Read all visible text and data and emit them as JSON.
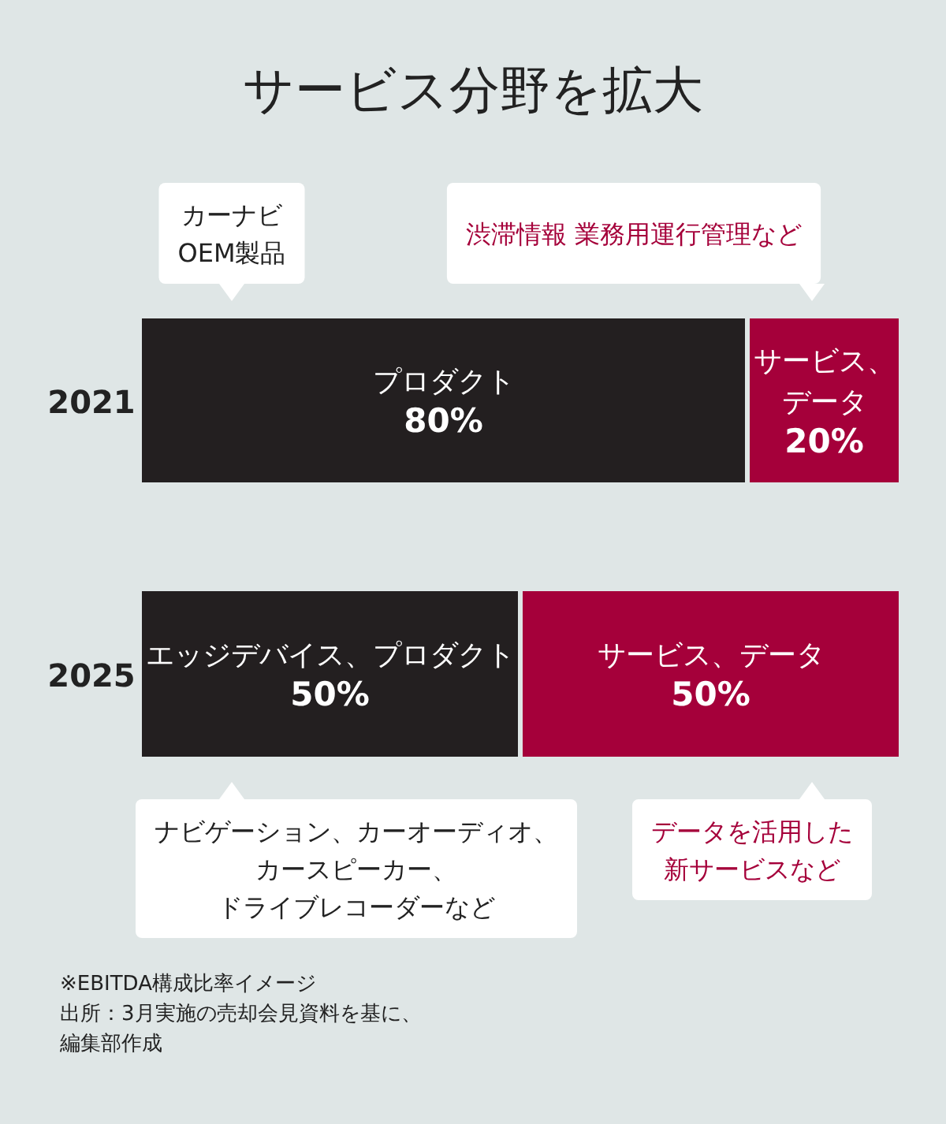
{
  "chart_data": {
    "type": "bar",
    "orientation": "horizontal",
    "stacked": true,
    "title": "サービス分野を拡大",
    "categories": [
      "2021",
      "2025"
    ],
    "series": [
      {
        "color": "#231f20",
        "values": [
          80,
          50
        ],
        "value_labels": [
          "プロダクト80%",
          "エッジデバイス、プロダクト50%"
        ]
      },
      {
        "color": "#a5003a",
        "values": [
          20,
          50
        ],
        "value_labels": [
          "サービス、データ20%",
          "サービス、データ50%"
        ]
      }
    ],
    "annotations": [
      "カーナビOEM製品",
      "渋滞情報 業務用運行管理など",
      "ナビゲーション、カーオーディオ、カースピーカー、ドライブレコーダーなど",
      "データを活用した新サービスなど",
      "※EBITDA構成比率イメージ",
      "出所：3月実施の売却会見資料を基に、編集部作成"
    ]
  }
}
